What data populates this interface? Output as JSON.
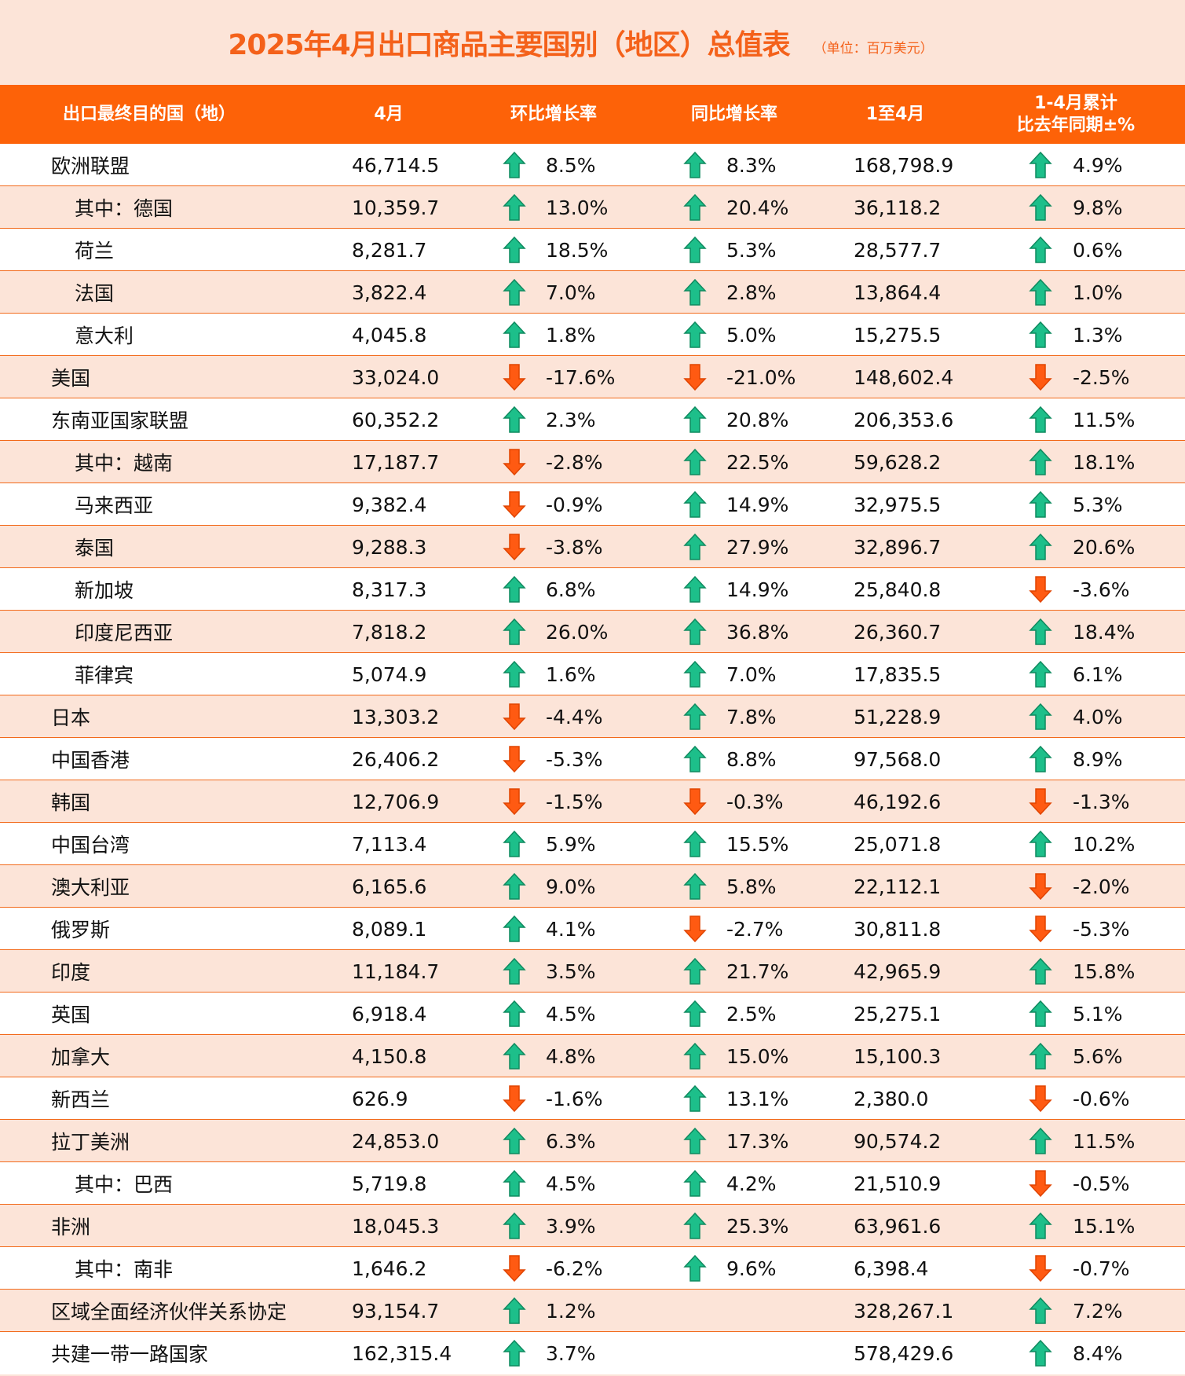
{
  "title": "2025年4月出口商品主要国别（地区）总值表",
  "unit": "（单位：百万美元）",
  "colors": {
    "accent": "#fd6208",
    "up": "#1dbf8a",
    "down": "#ff5a12"
  },
  "headers": [
    "出口最终目的国（地）",
    "4月",
    "环比增长率",
    "同比增长率",
    "1至4月",
    "1-4月累计\n比去年同期±%"
  ],
  "rows": [
    {
      "name": "欧洲联盟",
      "indent": false,
      "apr": "46,714.5",
      "mom": "8.5%",
      "yoy": "8.3%",
      "cum": "168,798.9",
      "cumyoy": "4.9%"
    },
    {
      "name": "其中：德国",
      "indent": true,
      "apr": "10,359.7",
      "mom": "13.0%",
      "yoy": "20.4%",
      "cum": "36,118.2",
      "cumyoy": "9.8%"
    },
    {
      "name": "荷兰",
      "indent": true,
      "apr": "8,281.7",
      "mom": "18.5%",
      "yoy": "5.3%",
      "cum": "28,577.7",
      "cumyoy": "0.6%"
    },
    {
      "name": "法国",
      "indent": true,
      "apr": "3,822.4",
      "mom": "7.0%",
      "yoy": "2.8%",
      "cum": "13,864.4",
      "cumyoy": "1.0%"
    },
    {
      "name": "意大利",
      "indent": true,
      "apr": "4,045.8",
      "mom": "1.8%",
      "yoy": "5.0%",
      "cum": "15,275.5",
      "cumyoy": "1.3%"
    },
    {
      "name": "美国",
      "indent": false,
      "apr": "33,024.0",
      "mom": "-17.6%",
      "yoy": "-21.0%",
      "cum": "148,602.4",
      "cumyoy": "-2.5%"
    },
    {
      "name": "东南亚国家联盟",
      "indent": false,
      "apr": "60,352.2",
      "mom": "2.3%",
      "yoy": "20.8%",
      "cum": "206,353.6",
      "cumyoy": "11.5%"
    },
    {
      "name": "其中：越南",
      "indent": true,
      "apr": "17,187.7",
      "mom": "-2.8%",
      "yoy": "22.5%",
      "cum": "59,628.2",
      "cumyoy": "18.1%"
    },
    {
      "name": "马来西亚",
      "indent": true,
      "apr": "9,382.4",
      "mom": "-0.9%",
      "yoy": "14.9%",
      "cum": "32,975.5",
      "cumyoy": "5.3%"
    },
    {
      "name": "泰国",
      "indent": true,
      "apr": "9,288.3",
      "mom": "-3.8%",
      "yoy": "27.9%",
      "cum": "32,896.7",
      "cumyoy": "20.6%"
    },
    {
      "name": "新加坡",
      "indent": true,
      "apr": "8,317.3",
      "mom": "6.8%",
      "yoy": "14.9%",
      "cum": "25,840.8",
      "cumyoy": "-3.6%"
    },
    {
      "name": "印度尼西亚",
      "indent": true,
      "apr": "7,818.2",
      "mom": "26.0%",
      "yoy": "36.8%",
      "cum": "26,360.7",
      "cumyoy": "18.4%"
    },
    {
      "name": "菲律宾",
      "indent": true,
      "apr": "5,074.9",
      "mom": "1.6%",
      "yoy": "7.0%",
      "cum": "17,835.5",
      "cumyoy": "6.1%"
    },
    {
      "name": "日本",
      "indent": false,
      "apr": "13,303.2",
      "mom": "-4.4%",
      "yoy": "7.8%",
      "cum": "51,228.9",
      "cumyoy": "4.0%"
    },
    {
      "name": "中国香港",
      "indent": false,
      "apr": "26,406.2",
      "mom": "-5.3%",
      "yoy": "8.8%",
      "cum": "97,568.0",
      "cumyoy": "8.9%"
    },
    {
      "name": "韩国",
      "indent": false,
      "apr": "12,706.9",
      "mom": "-1.5%",
      "yoy": "-0.3%",
      "cum": "46,192.6",
      "cumyoy": "-1.3%"
    },
    {
      "name": "中国台湾",
      "indent": false,
      "apr": "7,113.4",
      "mom": "5.9%",
      "yoy": "15.5%",
      "cum": "25,071.8",
      "cumyoy": "10.2%"
    },
    {
      "name": "澳大利亚",
      "indent": false,
      "apr": "6,165.6",
      "mom": "9.0%",
      "yoy": "5.8%",
      "cum": "22,112.1",
      "cumyoy": "-2.0%"
    },
    {
      "name": "俄罗斯",
      "indent": false,
      "apr": "8,089.1",
      "mom": "4.1%",
      "yoy": "-2.7%",
      "cum": "30,811.8",
      "cumyoy": "-5.3%"
    },
    {
      "name": "印度",
      "indent": false,
      "apr": "11,184.7",
      "mom": "3.5%",
      "yoy": "21.7%",
      "cum": "42,965.9",
      "cumyoy": "15.8%"
    },
    {
      "name": "英国",
      "indent": false,
      "apr": "6,918.4",
      "mom": "4.5%",
      "yoy": "2.5%",
      "cum": "25,275.1",
      "cumyoy": "5.1%"
    },
    {
      "name": "加拿大",
      "indent": false,
      "apr": "4,150.8",
      "mom": "4.8%",
      "yoy": "15.0%",
      "cum": "15,100.3",
      "cumyoy": "5.6%"
    },
    {
      "name": "新西兰",
      "indent": false,
      "apr": "626.9",
      "mom": "-1.6%",
      "yoy": "13.1%",
      "cum": "2,380.0",
      "cumyoy": "-0.6%"
    },
    {
      "name": "拉丁美洲",
      "indent": false,
      "apr": "24,853.0",
      "mom": "6.3%",
      "yoy": "17.3%",
      "cum": "90,574.2",
      "cumyoy": "11.5%"
    },
    {
      "name": "其中：巴西",
      "indent": true,
      "apr": "5,719.8",
      "mom": "4.5%",
      "yoy": "4.2%",
      "cum": "21,510.9",
      "cumyoy": "-0.5%"
    },
    {
      "name": "非洲",
      "indent": false,
      "apr": "18,045.3",
      "mom": "3.9%",
      "yoy": "25.3%",
      "cum": "63,961.6",
      "cumyoy": "15.1%"
    },
    {
      "name": "其中：南非",
      "indent": true,
      "apr": "1,646.2",
      "mom": "-6.2%",
      "yoy": "9.6%",
      "cum": "6,398.4",
      "cumyoy": "-0.7%"
    },
    {
      "name": "区域全面经济伙伴关系协定",
      "indent": false,
      "apr": "93,154.7",
      "mom": "1.2%",
      "yoy": "",
      "cum": "328,267.1",
      "cumyoy": "7.2%"
    },
    {
      "name": "共建一带一路国家",
      "indent": false,
      "apr": "162,315.4",
      "mom": "3.7%",
      "yoy": "",
      "cum": "578,429.6",
      "cumyoy": "8.4%"
    }
  ]
}
